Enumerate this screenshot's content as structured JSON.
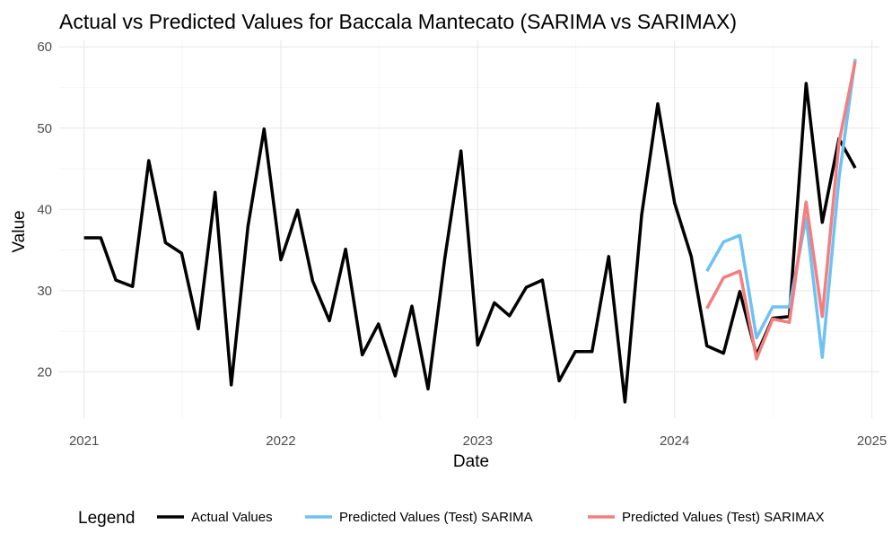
{
  "chart_data": {
    "type": "line",
    "title": "Actual vs Predicted Values for Baccala Mantecato (SARIMA vs SARIMAX)",
    "xlabel": "Date",
    "ylabel": "Value",
    "x_ticks": [
      "2021",
      "2022",
      "2023",
      "2024",
      "2025"
    ],
    "y_ticks": [
      20,
      30,
      40,
      50,
      60
    ],
    "xlim": [
      "2020-11-16",
      "2025-01-15"
    ],
    "ylim": [
      14.3,
      60.8
    ],
    "grid": true,
    "legend": {
      "title": "Legend",
      "position": "bottom"
    },
    "series": [
      {
        "name": "Actual Values",
        "color": "#000000",
        "points": [
          [
            "2021-01-01",
            36.5
          ],
          [
            "2021-02-01",
            36.5
          ],
          [
            "2021-03-01",
            31.3
          ],
          [
            "2021-04-01",
            30.5
          ],
          [
            "2021-05-01",
            46.0
          ],
          [
            "2021-06-01",
            35.9
          ],
          [
            "2021-07-01",
            34.6
          ],
          [
            "2021-08-01",
            25.3
          ],
          [
            "2021-09-01",
            42.1
          ],
          [
            "2021-10-01",
            18.4
          ],
          [
            "2021-11-01",
            37.9
          ],
          [
            "2021-12-01",
            49.9
          ],
          [
            "2022-01-01",
            33.8
          ],
          [
            "2022-02-01",
            39.9
          ],
          [
            "2022-03-01",
            31.2
          ],
          [
            "2022-04-01",
            26.3
          ],
          [
            "2022-05-01",
            35.1
          ],
          [
            "2022-06-01",
            22.1
          ],
          [
            "2022-07-01",
            25.9
          ],
          [
            "2022-08-01",
            19.5
          ],
          [
            "2022-09-01",
            28.1
          ],
          [
            "2022-10-01",
            17.9
          ],
          [
            "2022-11-01",
            34.0
          ],
          [
            "2022-12-01",
            47.2
          ],
          [
            "2023-01-01",
            23.3
          ],
          [
            "2023-02-01",
            28.5
          ],
          [
            "2023-03-01",
            26.9
          ],
          [
            "2023-04-01",
            30.4
          ],
          [
            "2023-05-01",
            31.3
          ],
          [
            "2023-06-01",
            18.9
          ],
          [
            "2023-07-01",
            22.5
          ],
          [
            "2023-08-01",
            22.5
          ],
          [
            "2023-09-01",
            34.2
          ],
          [
            "2023-10-01",
            16.3
          ],
          [
            "2023-11-01",
            39.3
          ],
          [
            "2023-12-01",
            53.0
          ],
          [
            "2024-01-01",
            40.8
          ],
          [
            "2024-02-01",
            34.2
          ],
          [
            "2024-03-01",
            23.2
          ],
          [
            "2024-04-01",
            22.3
          ],
          [
            "2024-05-01",
            29.9
          ],
          [
            "2024-06-01",
            22.1
          ],
          [
            "2024-07-01",
            26.6
          ],
          [
            "2024-08-01",
            26.8
          ],
          [
            "2024-09-01",
            55.5
          ],
          [
            "2024-10-01",
            38.4
          ],
          [
            "2024-11-01",
            48.7
          ],
          [
            "2024-12-01",
            45.1
          ]
        ]
      },
      {
        "name": "Predicted Values (Test) SARIMA",
        "color": "#6ec1f5",
        "points": [
          [
            "2024-03-01",
            32.4
          ],
          [
            "2024-04-01",
            36.0
          ],
          [
            "2024-05-01",
            36.8
          ],
          [
            "2024-06-01",
            24.2
          ],
          [
            "2024-07-01",
            28.0
          ],
          [
            "2024-08-01",
            28.0
          ],
          [
            "2024-09-01",
            39.0
          ],
          [
            "2024-10-01",
            21.8
          ],
          [
            "2024-11-01",
            43.8
          ],
          [
            "2024-12-01",
            58.5
          ]
        ]
      },
      {
        "name": "Predicted Values (Test) SARIMAX",
        "color": "#f47e7e",
        "points": [
          [
            "2024-03-01",
            27.8
          ],
          [
            "2024-04-01",
            31.6
          ],
          [
            "2024-05-01",
            32.4
          ],
          [
            "2024-06-01",
            21.6
          ],
          [
            "2024-07-01",
            26.5
          ],
          [
            "2024-08-01",
            26.1
          ],
          [
            "2024-09-01",
            40.9
          ],
          [
            "2024-10-01",
            26.8
          ],
          [
            "2024-11-01",
            48.2
          ],
          [
            "2024-12-01",
            58.2
          ]
        ]
      }
    ]
  }
}
